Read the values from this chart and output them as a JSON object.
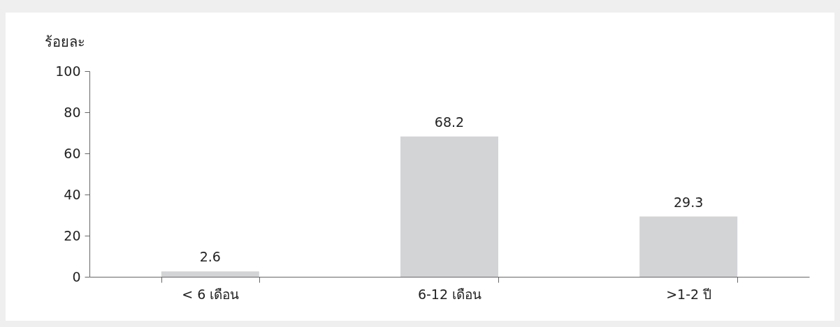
{
  "chart_data": {
    "type": "bar",
    "ylabel": "ร้อยละ",
    "categories": [
      "< 6 เดือน",
      "6-12 เดือน",
      ">1-2 ปี"
    ],
    "values": [
      2.6,
      68.2,
      29.3
    ],
    "color": "#d3d4d6",
    "ylim": [
      0,
      100
    ],
    "yticks": [
      0,
      20,
      40,
      60,
      80,
      100
    ],
    "grid": false,
    "data_labels": true
  }
}
